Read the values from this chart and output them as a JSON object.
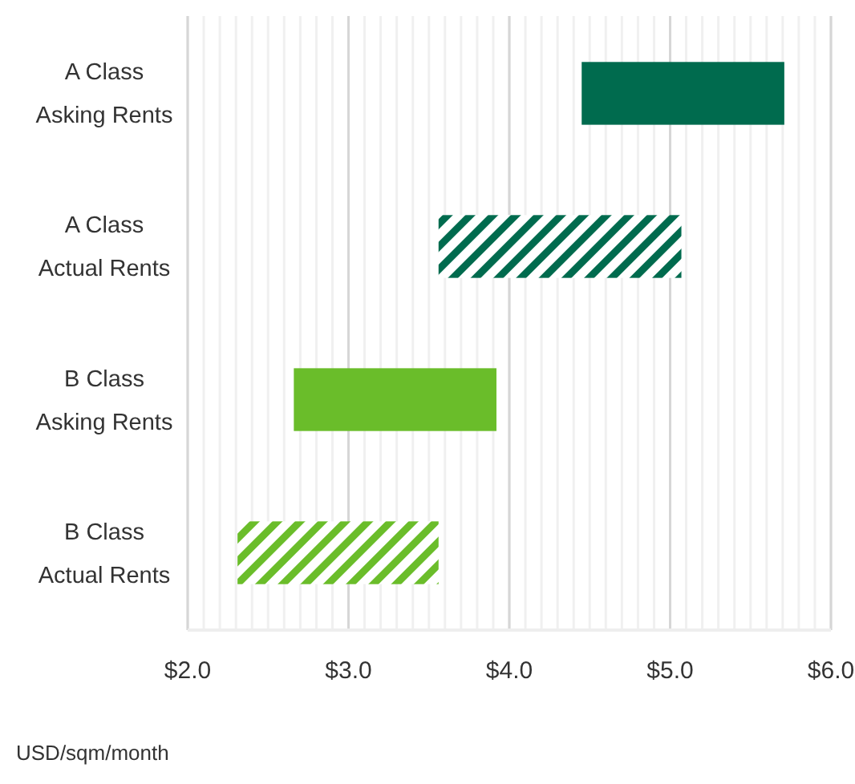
{
  "chart_data": {
    "type": "bar",
    "orientation": "horizontal",
    "categories": [
      "A Class\nAsking Rents",
      "A Class\nActual Rents",
      "B Class\nAsking Rents",
      "B Class\nActual Rents"
    ],
    "base": [
      4.45,
      3.56,
      2.66,
      2.31
    ],
    "values": [
      1.26,
      1.51,
      1.26,
      1.25
    ],
    "colors": [
      "#006b4e",
      "#006b4e",
      "#6abd2a",
      "#6abd2a"
    ],
    "xlim": [
      2,
      6
    ],
    "xticks": [
      {
        "value": 2,
        "label": "$2.0"
      },
      {
        "value": 3,
        "label": "$3.0"
      },
      {
        "value": 4,
        "label": "$4.0"
      },
      {
        "value": 5,
        "label": "$5.0"
      },
      {
        "value": 6,
        "label": "$6.0"
      }
    ],
    "xlabel": "USD/sqm/month",
    "grid": "x"
  }
}
